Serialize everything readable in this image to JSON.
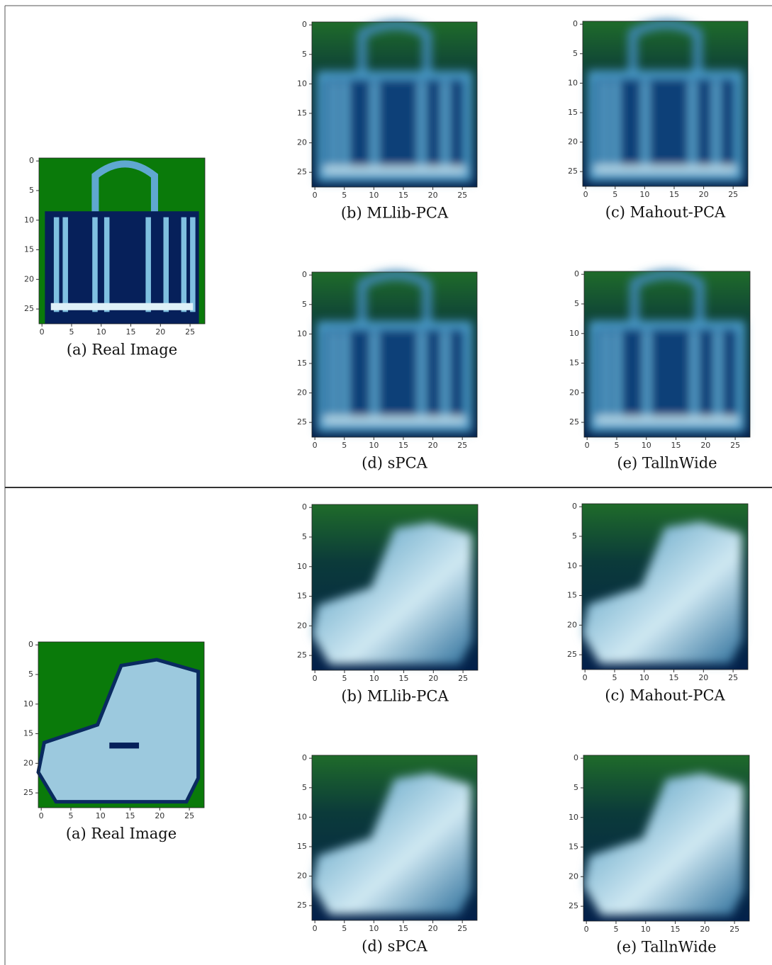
{
  "figure": {
    "axis_ticks": [
      0,
      5,
      10,
      15,
      20,
      25
    ],
    "groups": [
      {
        "panels": [
          {
            "caption": "(a) Real Image"
          },
          {
            "caption": "(b) MLlib-PCA"
          },
          {
            "caption": "(c) Mahout-PCA"
          },
          {
            "caption": "(d) sPCA"
          },
          {
            "caption": "(e) TallnWide"
          }
        ]
      },
      {
        "panels": [
          {
            "caption": "(a) Real Image"
          },
          {
            "caption": "(b) MLlib-PCA"
          },
          {
            "caption": "(c) Mahout-PCA"
          },
          {
            "caption": "(d) sPCA"
          },
          {
            "caption": "(e) TallnWide"
          }
        ]
      }
    ]
  }
}
